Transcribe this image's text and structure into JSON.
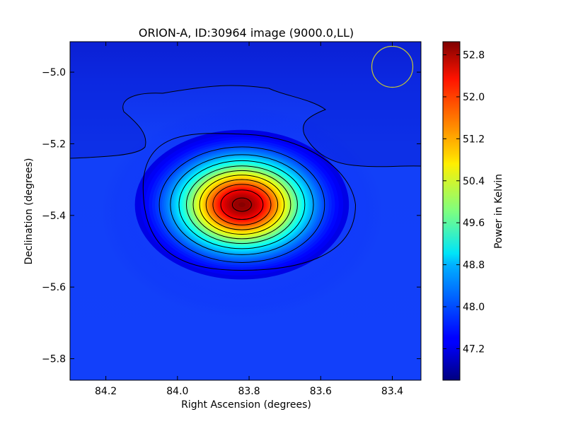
{
  "chart_data": {
    "type": "heatmap",
    "title": "ORION-A, ID:30964 image (9000.0,LL)",
    "xlabel": "Right Ascension (degrees)",
    "ylabel": "Declination (degrees)",
    "colorbar_label": "Power in Kelvin",
    "xlim": [
      84.3,
      83.32
    ],
    "ylim": [
      -5.86,
      -4.915
    ],
    "x_ticks": [
      84.2,
      84.0,
      83.8,
      83.6,
      83.4
    ],
    "x_tick_labels": [
      "84.2",
      "84.0",
      "83.8",
      "83.6",
      "83.4"
    ],
    "y_ticks": [
      -5.0,
      -5.2,
      -5.4,
      -5.6,
      -5.8
    ],
    "y_tick_labels": [
      "−5.0",
      "−5.2",
      "−5.4",
      "−5.6",
      "−5.8"
    ],
    "colorbar_range": [
      46.6,
      53.05
    ],
    "colorbar_ticks": [
      52.8,
      52.0,
      51.2,
      50.4,
      49.6,
      48.8,
      48.0,
      47.2
    ],
    "colorbar_tick_labels": [
      "52.8",
      "52.0",
      "51.2",
      "50.4",
      "49.6",
      "48.8",
      "48.0",
      "47.2"
    ],
    "colormap": "jet",
    "peak": {
      "ra": 83.82,
      "dec": -5.37,
      "value": 53.0
    },
    "background_level": 47.0,
    "contour_levels": [
      47.4,
      47.9,
      48.45,
      49.0,
      49.55,
      50.1,
      50.65,
      51.2,
      51.75,
      52.3,
      52.85
    ],
    "beam": {
      "ra": 83.4,
      "dec": -4.985,
      "color": "#c8c832"
    },
    "grid": false,
    "legend": "none"
  }
}
